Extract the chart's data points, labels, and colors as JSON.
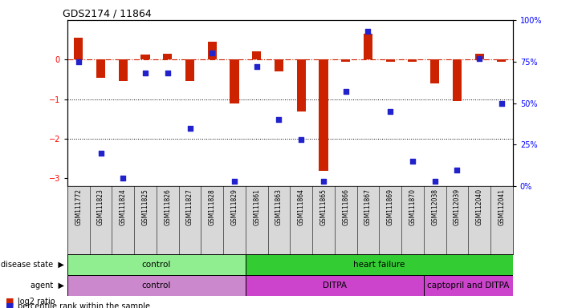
{
  "title": "GDS2174 / 11864",
  "samples": [
    "GSM111772",
    "GSM111823",
    "GSM111824",
    "GSM111825",
    "GSM111826",
    "GSM111827",
    "GSM111828",
    "GSM111829",
    "GSM111861",
    "GSM111863",
    "GSM111864",
    "GSM111865",
    "GSM111866",
    "GSM111867",
    "GSM111869",
    "GSM111870",
    "GSM112038",
    "GSM112039",
    "GSM112040",
    "GSM112041"
  ],
  "log2_ratio": [
    0.55,
    -0.45,
    -0.55,
    0.12,
    0.15,
    -0.55,
    0.45,
    -1.1,
    0.2,
    -0.3,
    -1.3,
    -2.8,
    -0.05,
    0.65,
    -0.05,
    -0.05,
    -0.6,
    -1.05,
    0.15,
    -0.05
  ],
  "percentile": [
    75,
    20,
    5,
    68,
    68,
    35,
    80,
    3,
    72,
    40,
    28,
    3,
    57,
    93,
    45,
    15,
    3,
    10,
    77,
    50
  ],
  "disease_state_groups": [
    {
      "label": "control",
      "start": 0,
      "end": 7,
      "color": "#90EE90"
    },
    {
      "label": "heart failure",
      "start": 8,
      "end": 19,
      "color": "#33CC33"
    }
  ],
  "agent_groups": [
    {
      "label": "control",
      "start": 0,
      "end": 7,
      "color": "#CC88CC"
    },
    {
      "label": "DITPA",
      "start": 8,
      "end": 15,
      "color": "#CC44CC"
    },
    {
      "label": "captopril and DITPA",
      "start": 16,
      "end": 19,
      "color": "#CC44CC"
    }
  ],
  "bar_color": "#CC2200",
  "dot_color": "#2222CC",
  "ref_line_color": "#CC2200",
  "ylim_left": [
    -3.2,
    1.0
  ],
  "ylim_right": [
    0,
    100
  ],
  "yticks_left": [
    0,
    -1,
    -2,
    -3
  ],
  "yticks_right": [
    0,
    25,
    50,
    75,
    100
  ],
  "grid_lines": [
    -1.0,
    -2.0
  ],
  "background_color": "#ffffff"
}
